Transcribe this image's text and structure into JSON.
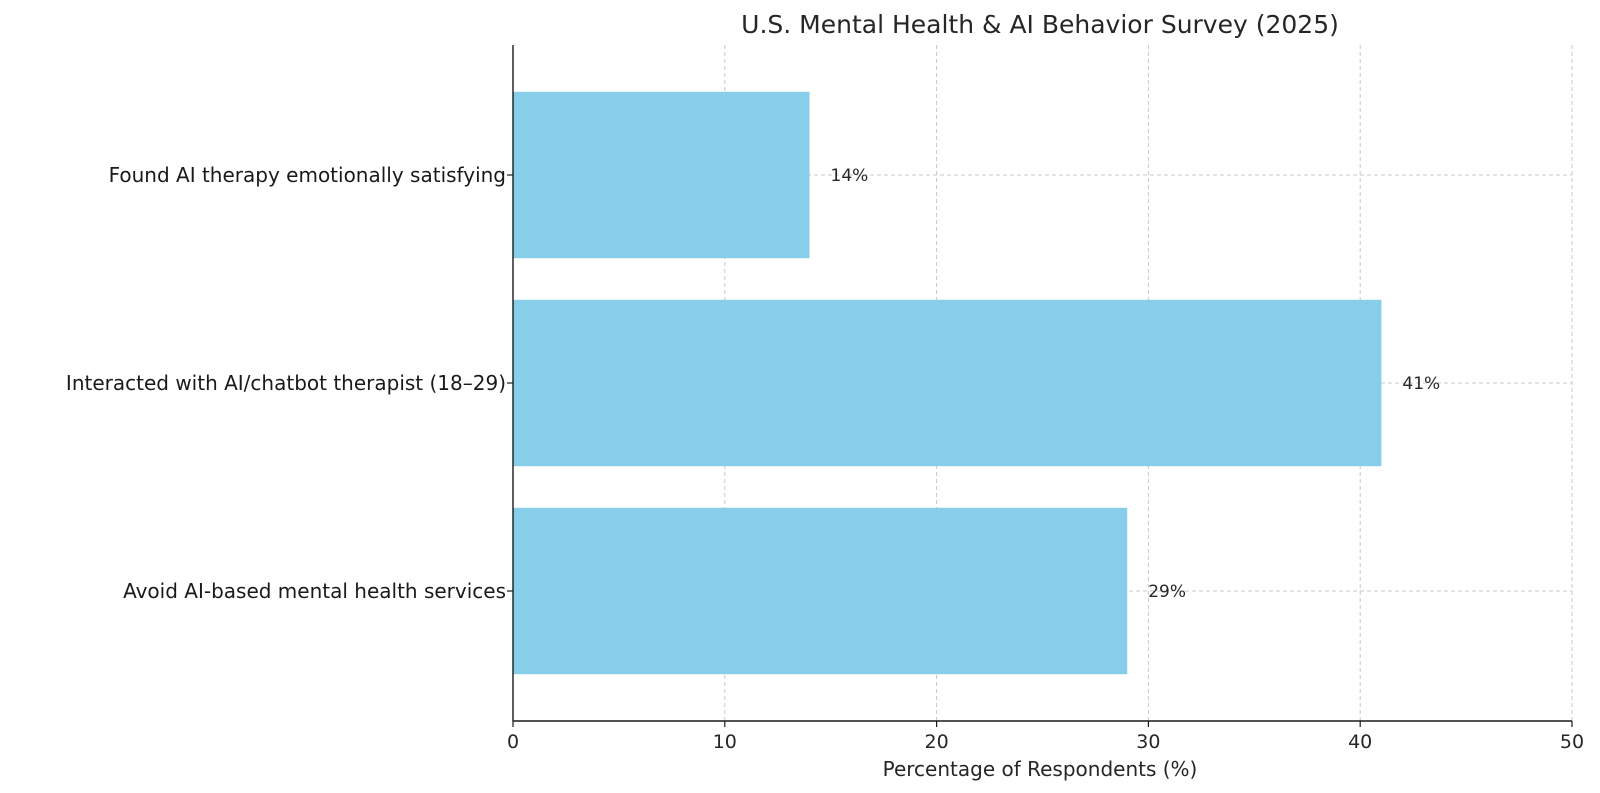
{
  "chart_data": {
    "type": "bar",
    "orientation": "horizontal",
    "title": "U.S. Mental Health & AI Behavior Survey (2025)",
    "xlabel": "Percentage of Respondents (%)",
    "ylabel": "",
    "xlim": [
      0,
      50
    ],
    "xticks": [
      "0",
      "10",
      "20",
      "30",
      "40",
      "50"
    ],
    "grid": true,
    "categories": [
      "Found AI therapy emotionally satisfying",
      "Interacted with AI/chatbot therapist (18–29)",
      "Avoid AI-based mental health services"
    ],
    "values": [
      14,
      41,
      29
    ],
    "data_labels": [
      "14%",
      "41%",
      "29%"
    ],
    "bar_color": "#87ceeb"
  }
}
